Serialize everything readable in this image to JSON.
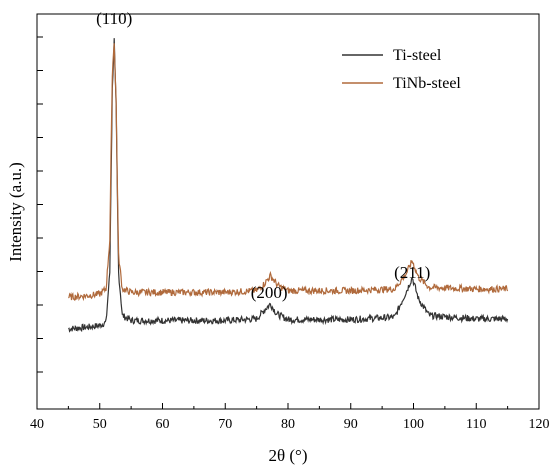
{
  "chart_data": {
    "type": "line",
    "xlabel": "2θ (°)",
    "ylabel": "Intensity (a.u.)",
    "xlim": [
      40,
      120
    ],
    "x_ticks": [
      "40",
      "50",
      "60",
      "70",
      "80",
      "90",
      "100",
      "110",
      "120"
    ],
    "y_tick_labels": false,
    "grid": false,
    "legend_position": "top-right",
    "series": [
      {
        "name": "Ti-steel",
        "color": "#333333",
        "x": [
          45,
          48,
          50,
          51,
          51.6,
          52.0,
          52.3,
          52.6,
          53.0,
          53.6,
          55,
          60,
          70,
          75,
          76.4,
          77.2,
          78.2,
          80,
          90,
          97,
          98.8,
          99.8,
          100.8,
          102.5,
          110,
          115
        ],
        "y": [
          0.13,
          0.135,
          0.14,
          0.15,
          0.3,
          0.85,
          1.0,
          0.8,
          0.3,
          0.17,
          0.155,
          0.155,
          0.155,
          0.16,
          0.19,
          0.205,
          0.175,
          0.158,
          0.158,
          0.165,
          0.24,
          0.285,
          0.22,
          0.17,
          0.16,
          0.16
        ]
      },
      {
        "name": "TiNb-steel",
        "color": "#b06a3c",
        "x": [
          45,
          48,
          50,
          51,
          51.6,
          52.0,
          52.3,
          52.6,
          53.0,
          53.6,
          55,
          60,
          70,
          75,
          76.2,
          77.2,
          78.4,
          80,
          90,
          97,
          98.8,
          99.8,
          100.8,
          102.5,
          110,
          115
        ],
        "y": [
          0.225,
          0.23,
          0.235,
          0.25,
          0.4,
          0.9,
          0.995,
          0.82,
          0.35,
          0.25,
          0.24,
          0.24,
          0.24,
          0.245,
          0.265,
          0.29,
          0.26,
          0.245,
          0.245,
          0.25,
          0.295,
          0.335,
          0.285,
          0.255,
          0.25,
          0.25
        ]
      }
    ],
    "annotations": [
      {
        "text": "(110)",
        "x": 52.3
      },
      {
        "text": "(200)",
        "x": 77.0
      },
      {
        "text": "(211)",
        "x": 99.8
      }
    ]
  }
}
